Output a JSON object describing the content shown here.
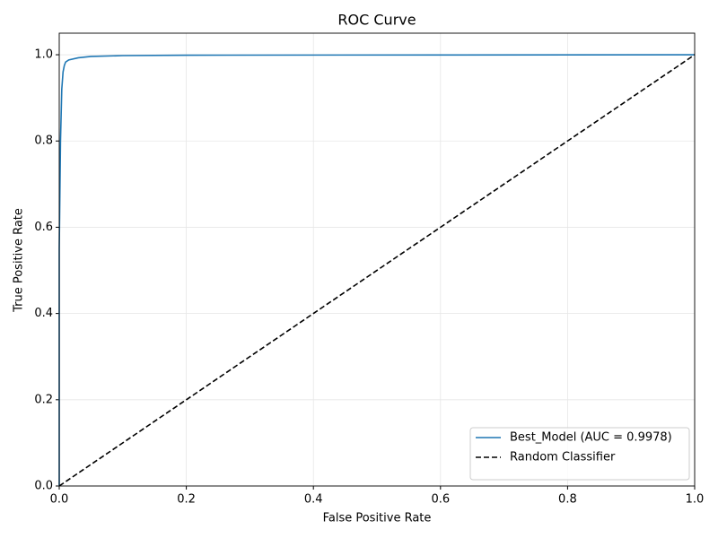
{
  "chart_data": {
    "type": "line",
    "title": "ROC Curve",
    "x_label": "False Positive Rate",
    "y_label": "True Positive Rate",
    "series": [
      {
        "name": "Best_Model (AUC = 0.9978)",
        "color": "#1f77b4",
        "linestyle": "solid",
        "x": [
          0,
          0,
          0.002,
          0.004,
          0.006,
          0.008,
          0.01,
          0.015,
          0.03,
          0.05,
          0.1,
          0.2,
          0.6,
          1
        ],
        "values": [
          0,
          0.55,
          0.8,
          0.92,
          0.96,
          0.975,
          0.983,
          0.988,
          0.993,
          0.996,
          0.998,
          0.999,
          0.9995,
          1
        ]
      },
      {
        "name": "Random Classifier",
        "color": "#000000",
        "linestyle": "dashed",
        "x": [
          0,
          1
        ],
        "values": [
          0,
          1
        ]
      }
    ],
    "xlim": [
      0,
      1
    ],
    "ylim": [
      0,
      1.05
    ],
    "xticks": [
      {
        "value": 0,
        "label": "0.0"
      },
      {
        "value": 0.2,
        "label": "0.2"
      },
      {
        "value": 0.4,
        "label": "0.4"
      },
      {
        "value": 0.6,
        "label": "0.6"
      },
      {
        "value": 0.8,
        "label": "0.8"
      },
      {
        "value": 1,
        "label": "1.0"
      }
    ],
    "yticks": [
      {
        "value": 0,
        "label": "0.0"
      },
      {
        "value": 0.2,
        "label": "0.2"
      },
      {
        "value": 0.4,
        "label": "0.4"
      },
      {
        "value": 0.6,
        "label": "0.6"
      },
      {
        "value": 0.8,
        "label": "0.8"
      },
      {
        "value": 1,
        "label": "1.0"
      }
    ],
    "grid": true,
    "legend": "lower right"
  }
}
